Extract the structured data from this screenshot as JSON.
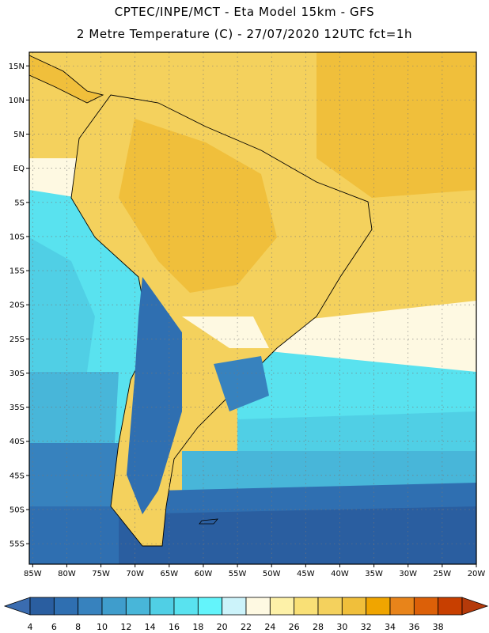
{
  "header": {
    "line1": "CPTEC/INPE/MCT -  Eta Model 15km - GFS",
    "line2": "2 Metre Temperature (C) - 27/07/2020 12UTC fct=1h"
  },
  "axes": {
    "lat_ticks": [
      {
        "label": "15N",
        "value": 15
      },
      {
        "label": "10N",
        "value": 10
      },
      {
        "label": "5N",
        "value": 5
      },
      {
        "label": "EQ",
        "value": 0
      },
      {
        "label": "5S",
        "value": -5
      },
      {
        "label": "10S",
        "value": -10
      },
      {
        "label": "15S",
        "value": -15
      },
      {
        "label": "20S",
        "value": -20
      },
      {
        "label": "25S",
        "value": -25
      },
      {
        "label": "30S",
        "value": -30
      },
      {
        "label": "35S",
        "value": -35
      },
      {
        "label": "40S",
        "value": -40
      },
      {
        "label": "45S",
        "value": -45
      },
      {
        "label": "50S",
        "value": -50
      },
      {
        "label": "55S",
        "value": -55
      }
    ],
    "lon_ticks": [
      {
        "label": "85W",
        "value": -85
      },
      {
        "label": "80W",
        "value": -80
      },
      {
        "label": "75W",
        "value": -75
      },
      {
        "label": "70W",
        "value": -70
      },
      {
        "label": "65W",
        "value": -65
      },
      {
        "label": "60W",
        "value": -60
      },
      {
        "label": "55W",
        "value": -55
      },
      {
        "label": "50W",
        "value": -50
      },
      {
        "label": "45W",
        "value": -45
      },
      {
        "label": "40W",
        "value": -40
      },
      {
        "label": "35W",
        "value": -35
      },
      {
        "label": "30W",
        "value": -30
      },
      {
        "label": "25W",
        "value": -25
      },
      {
        "label": "20W",
        "value": -20
      }
    ],
    "lon_range": [
      -85.5,
      -20
    ],
    "lat_range": [
      -58,
      17
    ]
  },
  "colorbar": {
    "labels": [
      "4",
      "6",
      "8",
      "10",
      "12",
      "14",
      "16",
      "18",
      "20",
      "22",
      "24",
      "26",
      "28",
      "30",
      "32",
      "34",
      "36",
      "38"
    ],
    "colors": [
      "#2a5ea0",
      "#2f6fb1",
      "#3782be",
      "#3f9dcc",
      "#48b6d9",
      "#50cfe5",
      "#59e2ef",
      "#63f4fb",
      "#ccf3fa",
      "#fef9e2",
      "#fdf1a8",
      "#f9e076",
      "#f4d15d",
      "#f0bf3b",
      "#f0a500",
      "#e8841a",
      "#dc6008",
      "#c83f00"
    ],
    "under_color": "#3a6cb0",
    "over_color": "#b53a0a"
  },
  "map": {
    "colors": {
      "sea_deep": "#2a5ea0",
      "sea_mid": "#3782be",
      "sea_light": "#48b6d9",
      "sea_cyan": "#59e2ef",
      "warm": "#f4d15d",
      "warmer": "#f0bf3b",
      "mild": "#fdf1a8",
      "cool": "#fef9e2"
    }
  }
}
